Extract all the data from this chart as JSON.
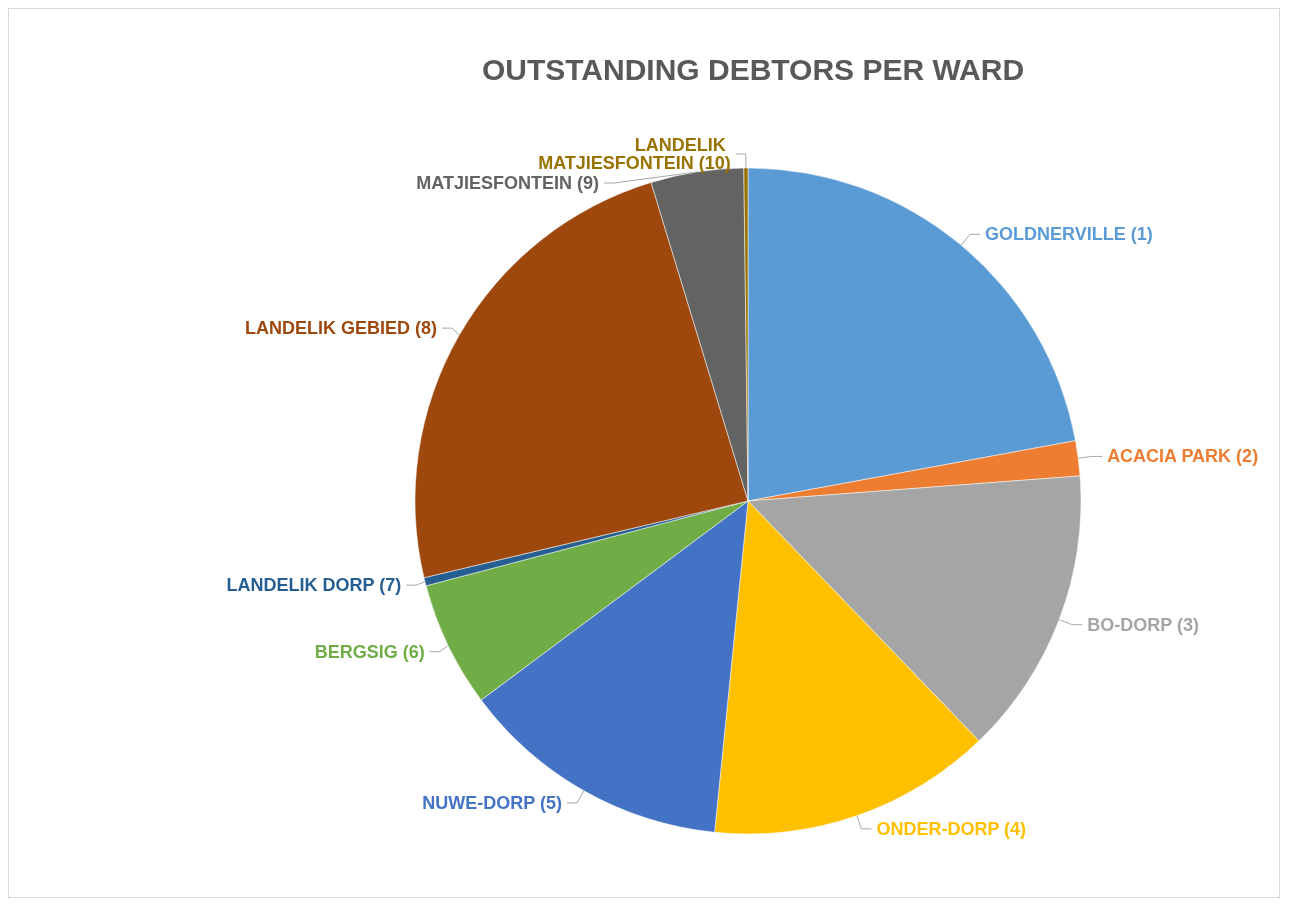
{
  "chart_data": {
    "type": "pie",
    "title": "OUTSTANDING DEBTORS PER WARD",
    "categories": [
      "GOLDNERVILLE (1)",
      "ACACIA PARK (2)",
      "BO-DORP (3)",
      "ONDER-DORP (4)",
      "NUWE-DORP (5)",
      "BERGSIG (6)",
      "LANDELIK DORP (7)",
      "LANDELIK GEBIED (8)",
      "MATJIESFONTEIN (9)",
      "LANDELIK MATJIESFONTEIN (10)"
    ],
    "values": [
      22.1,
      1.7,
      14,
      13.8,
      13.2,
      6.1,
      0.4,
      24,
      4.5,
      0.2
    ],
    "colors": [
      "#5b9bd5",
      "#ed7d31",
      "#a5a5a5",
      "#ffc000",
      "#4472c4",
      "#70ad47",
      "#255e91",
      "#9e480e",
      "#636363",
      "#997300"
    ]
  }
}
